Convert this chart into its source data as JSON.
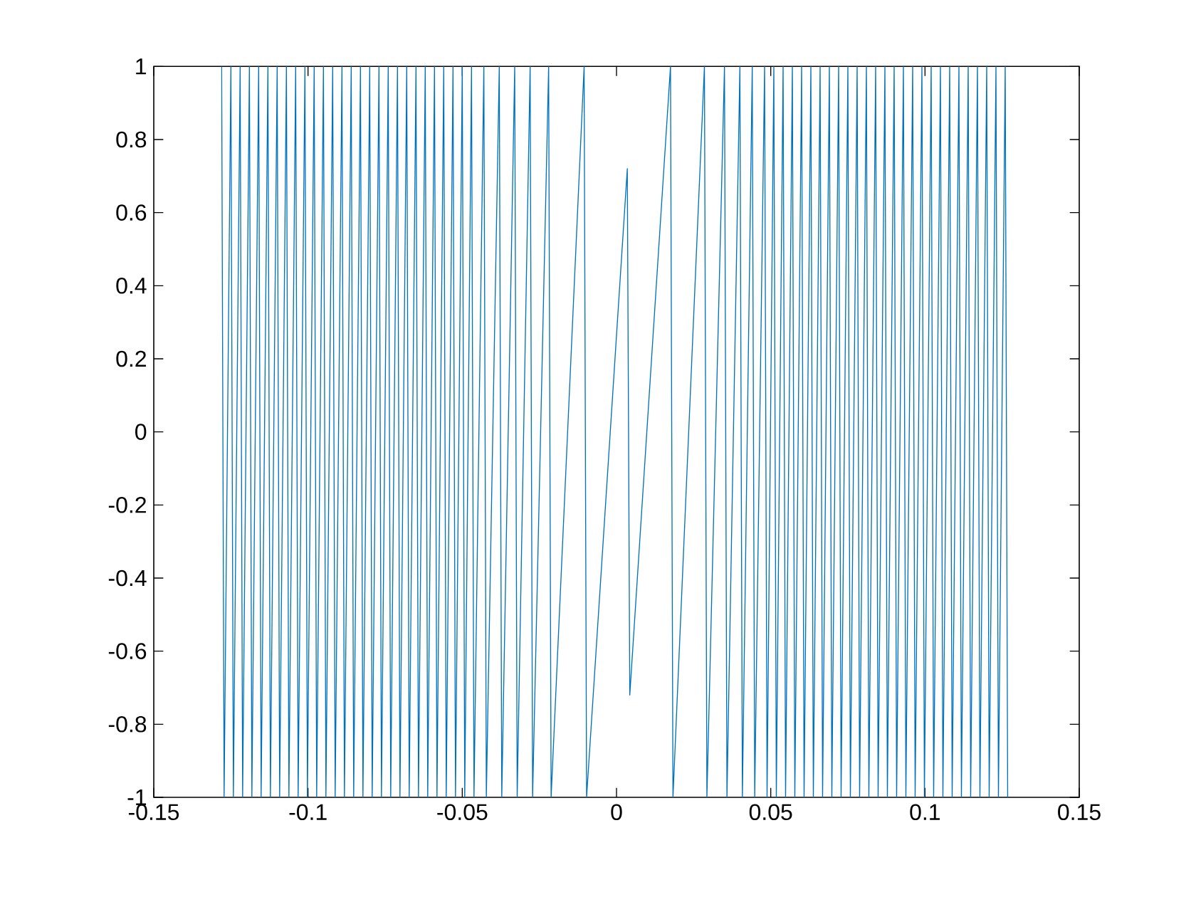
{
  "chart_data": {
    "type": "line",
    "xlim": [
      -0.15,
      0.15
    ],
    "ylim": [
      -1,
      1
    ],
    "xticks": [
      -0.15,
      -0.1,
      -0.05,
      0,
      0.05,
      0.1,
      0.15
    ],
    "yticks": [
      -1,
      -0.8,
      -0.6,
      -0.4,
      -0.2,
      0,
      0.2,
      0.4,
      0.6,
      0.8,
      1
    ],
    "grid": false,
    "marker": "none",
    "line_style": "solid",
    "series": [
      {
        "color": "#0072bd",
        "x": [
          -0.128,
          -0.1272,
          -0.125,
          -0.1242,
          -0.122,
          -0.1212,
          -0.119,
          -0.1182,
          -0.116,
          -0.1152,
          -0.113,
          -0.1122,
          -0.11,
          -0.1092,
          -0.107,
          -0.1062,
          -0.104,
          -0.1032,
          -0.101,
          -0.1002,
          -0.098,
          -0.0972,
          -0.095,
          -0.0942,
          -0.092,
          -0.0912,
          -0.089,
          -0.0882,
          -0.086,
          -0.0852,
          -0.083,
          -0.0822,
          -0.08,
          -0.0792,
          -0.077,
          -0.0762,
          -0.074,
          -0.0732,
          -0.071,
          -0.0702,
          -0.068,
          -0.0672,
          -0.065,
          -0.0642,
          -0.062,
          -0.0612,
          -0.059,
          -0.0582,
          -0.056,
          -0.0552,
          -0.053,
          -0.0522,
          -0.05,
          -0.0492,
          -0.047,
          -0.0462,
          -0.043,
          -0.0422,
          -0.038,
          -0.0372,
          -0.033,
          -0.0322,
          -0.028,
          -0.0272,
          -0.022,
          -0.0212,
          -0.0105,
          -0.0097,
          0.0035,
          0.0043,
          0.0175,
          0.0183,
          0.0285,
          0.0293,
          0.035,
          0.0358,
          0.04,
          0.0408,
          0.044,
          0.0448,
          0.048,
          0.0488,
          0.051,
          0.0518,
          0.054,
          0.0548,
          0.057,
          0.0578,
          0.06,
          0.0608,
          0.063,
          0.0638,
          0.066,
          0.0668,
          0.069,
          0.0698,
          0.072,
          0.0728,
          0.075,
          0.0758,
          0.078,
          0.0788,
          0.081,
          0.0818,
          0.084,
          0.0848,
          0.087,
          0.0878,
          0.09,
          0.0908,
          0.093,
          0.0938,
          0.096,
          0.0968,
          0.099,
          0.0998,
          0.102,
          0.1028,
          0.105,
          0.1058,
          0.108,
          0.1088,
          0.111,
          0.1118,
          0.114,
          0.1148,
          0.117,
          0.1178,
          0.12,
          0.1208,
          0.123,
          0.1238,
          0.126,
          0.1268
        ],
        "values": [
          1,
          -1,
          1,
          -1,
          1,
          -1,
          1,
          -1,
          1,
          -1,
          1,
          -1,
          1,
          -1,
          1,
          -1,
          1,
          -1,
          1,
          -1,
          1,
          -1,
          1,
          -1,
          1,
          -1,
          1,
          -1,
          1,
          -1,
          1,
          -1,
          1,
          -1,
          1,
          -1,
          1,
          -1,
          1,
          -1,
          1,
          -1,
          1,
          -1,
          1,
          -1,
          1,
          -1,
          1,
          -1,
          1,
          -1,
          1,
          -1,
          1,
          -1,
          1,
          -1,
          1,
          -1,
          1,
          -1,
          1,
          -1,
          1,
          -1,
          1,
          -1,
          0.72,
          -0.72,
          1,
          -1,
          1,
          -1,
          1,
          -1,
          1,
          -1,
          1,
          -1,
          1,
          -1,
          1,
          -1,
          1,
          -1,
          1,
          -1,
          1,
          -1,
          1,
          -1,
          1,
          -1,
          1,
          -1,
          1,
          -1,
          1,
          -1,
          1,
          -1,
          1,
          -1,
          1,
          -1,
          1,
          -1,
          1,
          -1,
          1,
          -1,
          1,
          -1,
          1,
          -1,
          1,
          -1,
          1,
          -1,
          1,
          -1,
          1,
          -1,
          1,
          -1,
          1,
          -1,
          1,
          -1,
          1,
          -1,
          1,
          -1
        ]
      }
    ]
  }
}
